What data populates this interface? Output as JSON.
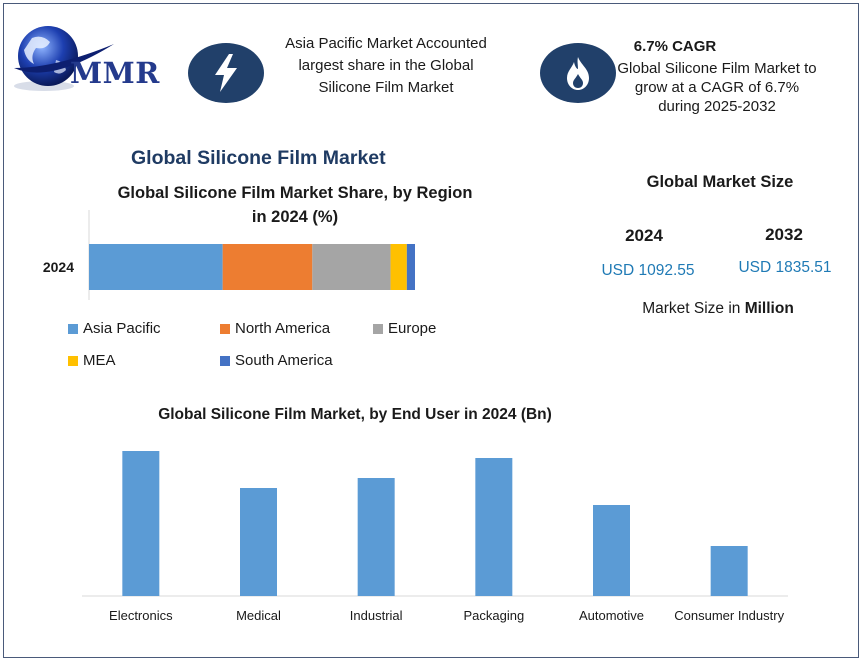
{
  "logo": {
    "text": "MMR",
    "icon": "globe-icon"
  },
  "highlights": [
    {
      "icon": "lightning-icon",
      "title": "",
      "text_lines": [
        "Asia Pacific Market Accounted",
        "largest share in the Global",
        "Silicone Film Market"
      ]
    },
    {
      "icon": "flame-icon",
      "title": "6.7% CAGR",
      "text_lines": [
        "Global Silicone Film Market to",
        "grow at a CAGR of 6.7%",
        "during 2025-2032"
      ]
    }
  ],
  "main_title": "Global Silicone Film Market",
  "market_size": {
    "title": "Global Market Size",
    "years": [
      {
        "year": "2024",
        "value": "USD 1092.55"
      },
      {
        "year": "2032",
        "value": "USD 1835.51"
      }
    ],
    "note_prefix": "Market Size in ",
    "note_bold": "Million"
  },
  "colors": {
    "accent": "#21406a",
    "title": "#1f3b63",
    "value_blue": "#1f7ab5",
    "bar_blue": "#5b9bd5"
  },
  "chart_data": [
    {
      "type": "bar",
      "orientation": "horizontal-stacked",
      "title": "Global Silicone Film Market Share, by Region in 2024 (%)",
      "title_lines": [
        "Global Silicone Film Market Share, by Region",
        "in 2024 (%)"
      ],
      "categories": [
        "2024"
      ],
      "series": [
        {
          "name": "Asia Pacific",
          "values": [
            41
          ],
          "color": "#5b9bd5"
        },
        {
          "name": "North America",
          "values": [
            27.5
          ],
          "color": "#ed7d31"
        },
        {
          "name": "Europe",
          "values": [
            24
          ],
          "color": "#a5a5a5"
        },
        {
          "name": "MEA",
          "values": [
            5
          ],
          "color": "#ffc000"
        },
        {
          "name": "South America",
          "values": [
            2.5
          ],
          "color": "#4472c4"
        }
      ],
      "xlim": [
        0,
        100
      ],
      "grid": false,
      "legend": "bottom"
    },
    {
      "type": "bar",
      "title": "Global Silicone Film Market, by End User in 2024 (Bn)",
      "categories": [
        "Electronics",
        "Medical",
        "Industrial",
        "Packaging",
        "Automotive",
        "Consumer Industry"
      ],
      "values": [
        145,
        108,
        118,
        138,
        91,
        50
      ],
      "color": "#5b9bd5",
      "ylim": [
        0,
        155
      ],
      "grid": false,
      "legend": "none"
    }
  ]
}
